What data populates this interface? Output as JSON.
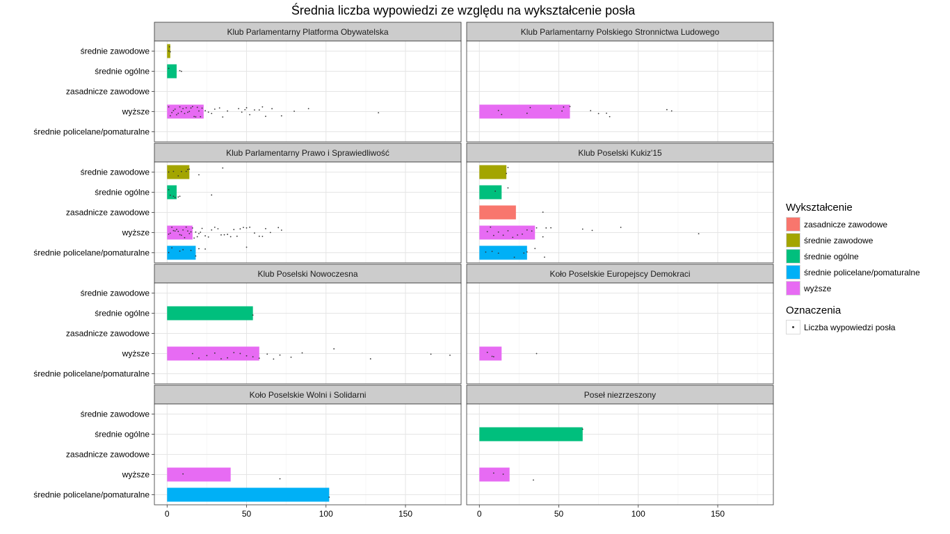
{
  "chart_data": {
    "type": "bar",
    "title": "Średnia liczba wypowiedzi ze względu na wykształcenie posła",
    "xlabel": "",
    "ylabel": "",
    "xlim": [
      -8,
      185
    ],
    "x_ticks": [
      0,
      50,
      100,
      150
    ],
    "grid": true,
    "legend_position": "right",
    "categories": [
      "średnie zawodowe",
      "średnie ogólne",
      "zasadnicze zawodowe",
      "wyższe",
      "średnie policelane/pomaturalne"
    ],
    "colors": {
      "zasadnicze zawodowe": "#F8766D",
      "średnie zawodowe": "#A3A500",
      "średnie ogólne": "#00BF7D",
      "średnie policelane/pomaturalne": "#00B0F6",
      "wyższe": "#E76BF3"
    },
    "legend": {
      "fill_title": "Wykształcenie",
      "fill_items": [
        "zasadnicze zawodowe",
        "średnie zawodowe",
        "średnie ogólne",
        "średnie policelane/pomaturalne",
        "wyższe"
      ],
      "marks_title": "Oznaczenia",
      "marks_items": [
        "Liczba wypowiedzi posła"
      ]
    },
    "panels": [
      {
        "name": "Klub Parlamentarny Platforma Obywatelska",
        "bars": {
          "średnie zawodowe": 2,
          "średnie ogólne": 6,
          "wyższe": 23
        },
        "points": {
          "średnie zawodowe": [
            1,
            2,
            1.5
          ],
          "średnie ogólne": [
            1,
            8,
            9
          ],
          "wyższe": [
            1,
            2,
            3,
            4,
            5,
            6,
            7,
            8,
            9,
            10,
            11,
            12,
            13,
            14,
            15,
            16,
            17,
            18,
            19,
            20,
            21,
            22,
            24,
            26,
            28,
            30,
            33,
            35,
            38,
            45,
            47,
            49,
            50,
            52,
            55,
            58,
            60,
            62,
            66,
            72,
            80,
            89,
            133
          ]
        }
      },
      {
        "name": "Klub Parlamentarny Polskiego Stronnictwa Ludowego",
        "bars": {
          "wyższe": 57
        },
        "points": {
          "wyższe": [
            12,
            14,
            30,
            32,
            45,
            52,
            53,
            57,
            70,
            75,
            80,
            82,
            118,
            121
          ]
        }
      },
      {
        "name": "Klub Parlamentarny Prawo i Sprawiedliwość",
        "bars": {
          "średnie zawodowe": 14,
          "średnie ogólne": 6,
          "wyższe": 16,
          "średnie policelane/pomaturalne": 18
        },
        "points": {
          "średnie zawodowe": [
            1,
            4,
            7,
            9,
            12,
            13,
            14,
            20,
            35
          ],
          "średnie ogólne": [
            1,
            2,
            4,
            5,
            7,
            8,
            28
          ],
          "wyższe": [
            1,
            2,
            3,
            4,
            5,
            6,
            7,
            8,
            9,
            10,
            11,
            12,
            13,
            14,
            15,
            16,
            17,
            18,
            19,
            20,
            21,
            22,
            24,
            26,
            28,
            30,
            32,
            34,
            36,
            38,
            40,
            42,
            44,
            46,
            48,
            50,
            52,
            55,
            58,
            60,
            62,
            65,
            70,
            72
          ],
          "średnie policelane/pomaturalne": [
            1,
            3,
            8,
            10,
            15,
            18,
            20,
            24,
            50
          ]
        }
      },
      {
        "name": "Klub Poselski Kukiz'15",
        "bars": {
          "średnie zawodowe": 17,
          "średnie ogólne": 14,
          "zasadnicze zawodowe": 23,
          "wyższe": 35,
          "średnie policelane/pomaturalne": 30
        },
        "points": {
          "średnie zawodowe": [
            17,
            18
          ],
          "średnie ogólne": [
            10,
            18
          ],
          "zasadnicze zawodowe": [
            40
          ],
          "wyższe": [
            5,
            7,
            9,
            12,
            15,
            18,
            21,
            24,
            27,
            30,
            33,
            36,
            40,
            42,
            45,
            65,
            71,
            89,
            138
          ],
          "średnie policelane/pomaturalne": [
            4,
            8,
            12,
            22,
            28,
            30,
            35,
            41
          ]
        }
      },
      {
        "name": "Klub Poselski Nowoczesna",
        "bars": {
          "średnie ogólne": 54,
          "wyższe": 58
        },
        "points": {
          "średnie ogólne": [
            54
          ],
          "wyższe": [
            16,
            20,
            25,
            30,
            34,
            38,
            42,
            46,
            50,
            54,
            58,
            63,
            67,
            71,
            78,
            85,
            105,
            128,
            166,
            178
          ]
        }
      },
      {
        "name": "Koło Poselskie Europejscy Demokraci",
        "bars": {
          "wyższe": 14
        },
        "points": {
          "wyższe": [
            5,
            8,
            9,
            36
          ]
        }
      },
      {
        "name": "Koło Poselskie Wolni i Solidarni",
        "bars": {
          "wyższe": 40,
          "średnie policelane/pomaturalne": 102
        },
        "points": {
          "wyższe": [
            10,
            71
          ],
          "średnie policelane/pomaturalne": [
            102
          ]
        }
      },
      {
        "name": "Poseł niezrzeszony",
        "bars": {
          "średnie ogólne": 65,
          "wyższe": 19
        },
        "points": {
          "średnie ogólne": [
            65
          ],
          "wyższe": [
            9,
            15,
            34
          ]
        }
      }
    ]
  }
}
